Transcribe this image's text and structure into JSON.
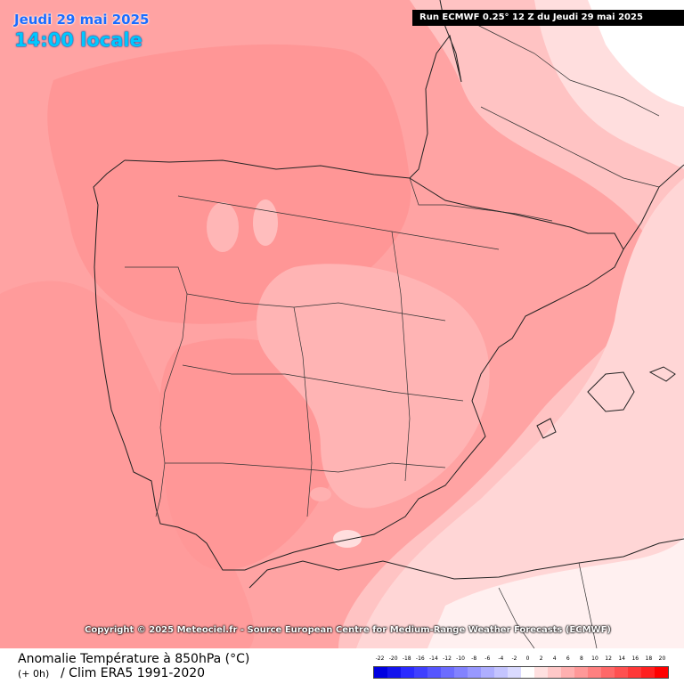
{
  "header": {
    "date": "Jeudi 29 mai 2025",
    "time": "14:00 locale",
    "run": "Run ECMWF 0.25° 12 Z du Jeudi 29 mai 2025"
  },
  "copyright": "Copyright © 2025 Meteociel.fr - Source European Centre for Medium-Range Weather Forecasts (ECMWF)",
  "footer": {
    "title": "Anomalie Température à 850hPa (°C)",
    "lead": "(+ 0h)",
    "clim": "/ Clim ERA5 1991-2020"
  },
  "legend": {
    "labels": [
      "-22",
      "-20",
      "-18",
      "-16",
      "-14",
      "-12",
      "-10",
      "-8",
      "-6",
      "-4",
      "-2",
      "0",
      "2",
      "4",
      "6",
      "8",
      "10",
      "12",
      "14",
      "16",
      "18",
      "20"
    ],
    "colors": [
      "#0000e0",
      "#1414ee",
      "#2a2aff",
      "#3f3fff",
      "#5656ff",
      "#6c6cff",
      "#8282ff",
      "#9898ff",
      "#aeaeff",
      "#c4c4ff",
      "#dadaff",
      "#ffffff",
      "#ffe0e0",
      "#ffc8c8",
      "#ffb0b0",
      "#ff9898",
      "#ff8080",
      "#ff6868",
      "#ff5050",
      "#ff3838",
      "#ff2020",
      "#ff0000"
    ]
  },
  "map": {
    "region": "Péninsule Ibérique",
    "fill_colors": {
      "strong": "#ff9696",
      "medium": "#ffa3a3",
      "light": "#ffc3c3",
      "pale": "#ffd8d8",
      "none": "#ffffff"
    }
  }
}
